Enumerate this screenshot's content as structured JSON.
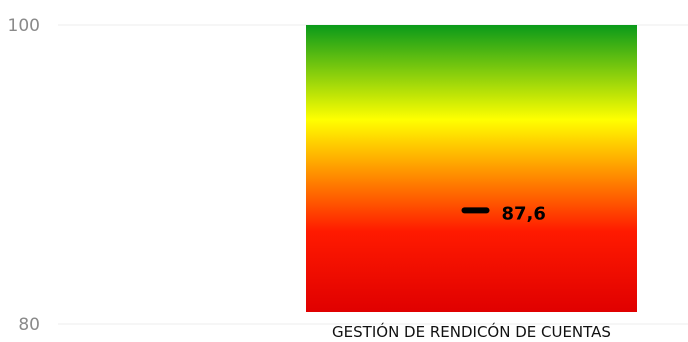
{
  "chart_data": {
    "type": "bar",
    "title": "",
    "xlabel": "",
    "ylabel": "",
    "ylim": [
      80,
      100
    ],
    "y_ticks": [
      80,
      100
    ],
    "y_tick_labels": [
      "80",
      "100"
    ],
    "categories": [
      "GESTIÓN DE RENDICÓN DE CUENTAS"
    ],
    "series": [
      {
        "values": [
          100
        ],
        "gradient_colors": {
          "top": "#0a9a1a",
          "upper": "#ffff00",
          "lower": "#ff1a00",
          "bottom": "#e00000"
        }
      }
    ],
    "markers": [
      {
        "category": "GESTIÓN DE RENDICÓN DE CUENTAS",
        "value": 87.6,
        "label": "87,6",
        "color": "#000000"
      }
    ],
    "grid": true,
    "legend": "none"
  }
}
